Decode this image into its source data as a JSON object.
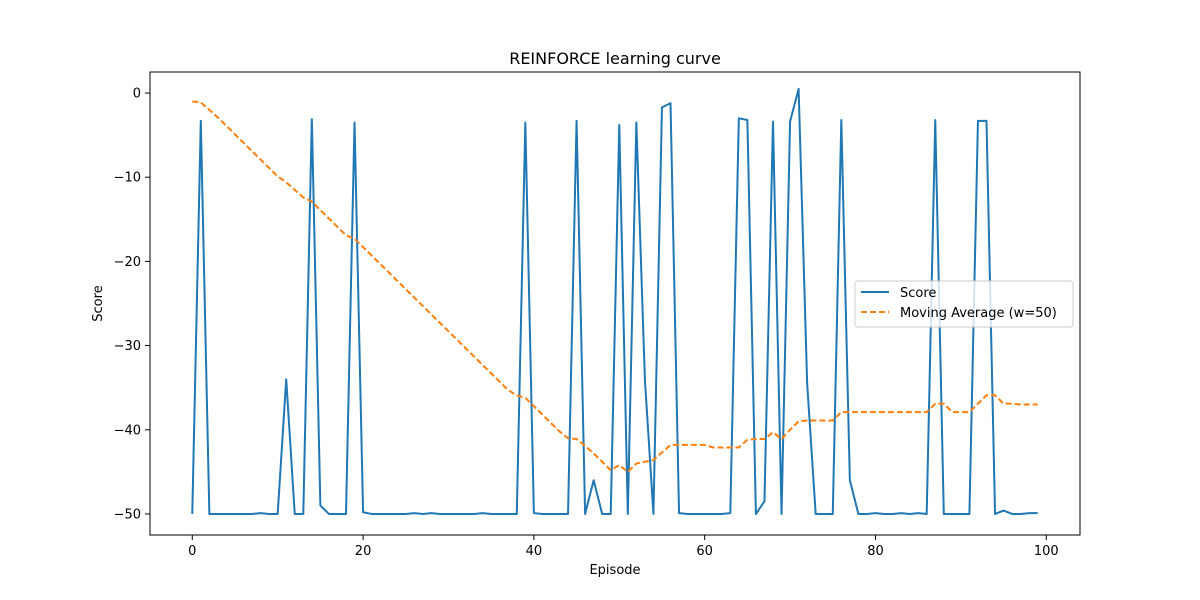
{
  "chart_data": {
    "type": "line",
    "title": "REINFORCE learning curve",
    "xlabel": "Episode",
    "ylabel": "Score",
    "xlim": [
      -4.95,
      103.95
    ],
    "ylim": [
      -52.5,
      2.5
    ],
    "x_ticks": [
      0,
      20,
      40,
      60,
      80,
      100
    ],
    "y_ticks": [
      0,
      -10,
      -20,
      -30,
      -40,
      -50
    ],
    "grid": false,
    "legend_position": "center-right",
    "x": [
      0,
      1,
      2,
      3,
      4,
      5,
      6,
      7,
      8,
      9,
      10,
      11,
      12,
      13,
      14,
      15,
      16,
      17,
      18,
      19,
      20,
      21,
      22,
      23,
      24,
      25,
      26,
      27,
      28,
      29,
      30,
      31,
      32,
      33,
      34,
      35,
      36,
      37,
      38,
      39,
      40,
      41,
      42,
      43,
      44,
      45,
      46,
      47,
      48,
      49,
      50,
      51,
      52,
      53,
      54,
      55,
      56,
      57,
      58,
      59,
      60,
      61,
      62,
      63,
      64,
      65,
      66,
      67,
      68,
      69,
      70,
      71,
      72,
      73,
      74,
      75,
      76,
      77,
      78,
      79,
      80,
      81,
      82,
      83,
      84,
      85,
      86,
      87,
      88,
      89,
      90,
      91,
      92,
      93,
      94,
      95,
      96,
      97,
      98,
      99
    ],
    "series": [
      {
        "name": "Score",
        "color": "#1f77b4",
        "style": "solid",
        "values": [
          -50,
          -3.3,
          -50,
          -50,
          -50,
          -50,
          -50,
          -50,
          -49.9,
          -50,
          -50,
          -34,
          -50,
          -50,
          -3.1,
          -49,
          -50,
          -50,
          -50,
          -3.5,
          -49.8,
          -50,
          -50,
          -50,
          -50,
          -50,
          -49.9,
          -50,
          -49.9,
          -50,
          -50,
          -50,
          -50,
          -50,
          -49.9,
          -50,
          -50,
          -50,
          -50,
          -3.5,
          -49.9,
          -50,
          -50,
          -50,
          -50,
          -3.3,
          -50,
          -46,
          -50,
          -50,
          -3.8,
          -50,
          -3.5,
          -34,
          -50,
          -1.7,
          -1.2,
          -49.9,
          -50,
          -50,
          -50,
          -50,
          -50,
          -49.9,
          -3,
          -3.2,
          -50,
          -48.5,
          -3.4,
          -50,
          -3.4,
          0.5,
          -34.5,
          -50,
          -50,
          -50,
          -3.2,
          -46,
          -50,
          -50,
          -49.9,
          -50,
          -50,
          -49.9,
          -50,
          -49.9,
          -50,
          -3.2,
          -50,
          -50,
          -50,
          -50,
          -3.3,
          -3.3,
          -50,
          -49.6,
          -50,
          -50,
          -49.9,
          -49.9
        ]
      },
      {
        "name": "Moving Average (w=50)",
        "color": "#ff7f0e",
        "style": "dashed",
        "values": [
          -1,
          -1.1,
          -2,
          -2.9,
          -3.9,
          -4.9,
          -5.9,
          -6.9,
          -7.9,
          -8.9,
          -9.9,
          -10.6,
          -11.5,
          -12.4,
          -12.9,
          -13.9,
          -14.9,
          -15.9,
          -16.9,
          -17.3,
          -18.3,
          -19.3,
          -20.3,
          -21.3,
          -22.3,
          -23.3,
          -24.3,
          -25.3,
          -26.3,
          -27.3,
          -28.3,
          -29.3,
          -30.3,
          -31.3,
          -32.3,
          -33.3,
          -34.3,
          -35.3,
          -35.9,
          -36.2,
          -37.2,
          -38.2,
          -39.2,
          -40.2,
          -41,
          -41.1,
          -41.9,
          -42.8,
          -43.8,
          -44.8,
          -44.2,
          -45,
          -44,
          -43.8,
          -43.6,
          -42.7,
          -41.8,
          -41.8,
          -41.8,
          -41.8,
          -41.8,
          -42.1,
          -42.1,
          -42.1,
          -42.1,
          -41.2,
          -41.1,
          -41.1,
          -40.3,
          -41.1,
          -40,
          -39,
          -38.9,
          -38.9,
          -38.9,
          -38.9,
          -37.9,
          -37.9,
          -37.9,
          -37.9,
          -37.9,
          -37.9,
          -37.9,
          -37.9,
          -37.9,
          -37.9,
          -37.9,
          -36.9,
          -36.9,
          -37.9,
          -37.9,
          -37.9,
          -36.9,
          -35.9,
          -35.9,
          -36.9,
          -36.9,
          -37,
          -37,
          -37
        ]
      }
    ]
  }
}
